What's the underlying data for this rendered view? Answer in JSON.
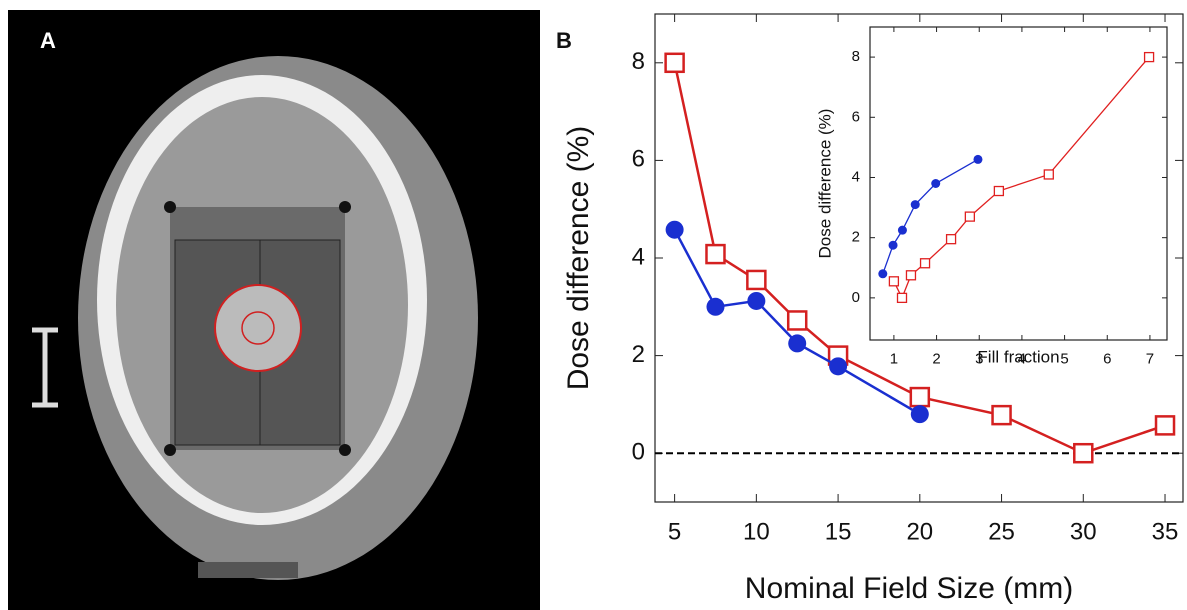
{
  "panel_labels": [
    "A",
    "B"
  ],
  "chart_data": [
    {
      "type": "line",
      "xlabel": "Nominal Field Size (mm)",
      "ylabel": "Dose difference (%)",
      "xlim": [
        3.8,
        36.1
      ],
      "ylim": [
        -1,
        9
      ],
      "xticks": [
        5,
        10,
        15,
        20,
        25,
        30,
        35
      ],
      "yticks": [
        0,
        2,
        4,
        6,
        8
      ],
      "hline": 0,
      "series": [
        {
          "color": "#d42020",
          "marker": "square",
          "x": [
            5,
            7.5,
            10,
            12.5,
            15,
            20,
            25,
            30,
            35
          ],
          "values": [
            8.0,
            4.08,
            3.55,
            2.72,
            2.0,
            1.15,
            0.78,
            0.0,
            0.57
          ]
        },
        {
          "color": "#1a2fd0",
          "marker": "circle",
          "x": [
            5,
            7.5,
            10,
            12.5,
            15,
            20
          ],
          "values": [
            4.58,
            3.0,
            3.12,
            2.25,
            1.78,
            0.8
          ]
        }
      ]
    },
    {
      "type": "line",
      "xlabel": "Fill fraction",
      "ylabel": "Dose difference (%)",
      "xlim": [
        0.44,
        7.4
      ],
      "ylim": [
        -1.4,
        9
      ],
      "xticks": [
        1,
        2,
        3,
        4,
        5,
        6,
        7
      ],
      "yticks": [
        0,
        2,
        4,
        6,
        8
      ],
      "series": [
        {
          "color": "#1a2fd0",
          "marker": "circle",
          "x": [
            0.74,
            0.98,
            1.2,
            1.5,
            1.98,
            2.97
          ],
          "values": [
            0.8,
            1.75,
            2.25,
            3.1,
            3.8,
            4.6
          ]
        },
        {
          "color": "#e02020",
          "marker": "square",
          "x": [
            1.0,
            1.19,
            1.4,
            1.73,
            2.34,
            2.78,
            3.46,
            4.63,
            6.98
          ],
          "values": [
            0.55,
            0.0,
            0.75,
            1.15,
            1.95,
            2.7,
            3.55,
            4.1,
            8.0
          ]
        }
      ]
    }
  ]
}
